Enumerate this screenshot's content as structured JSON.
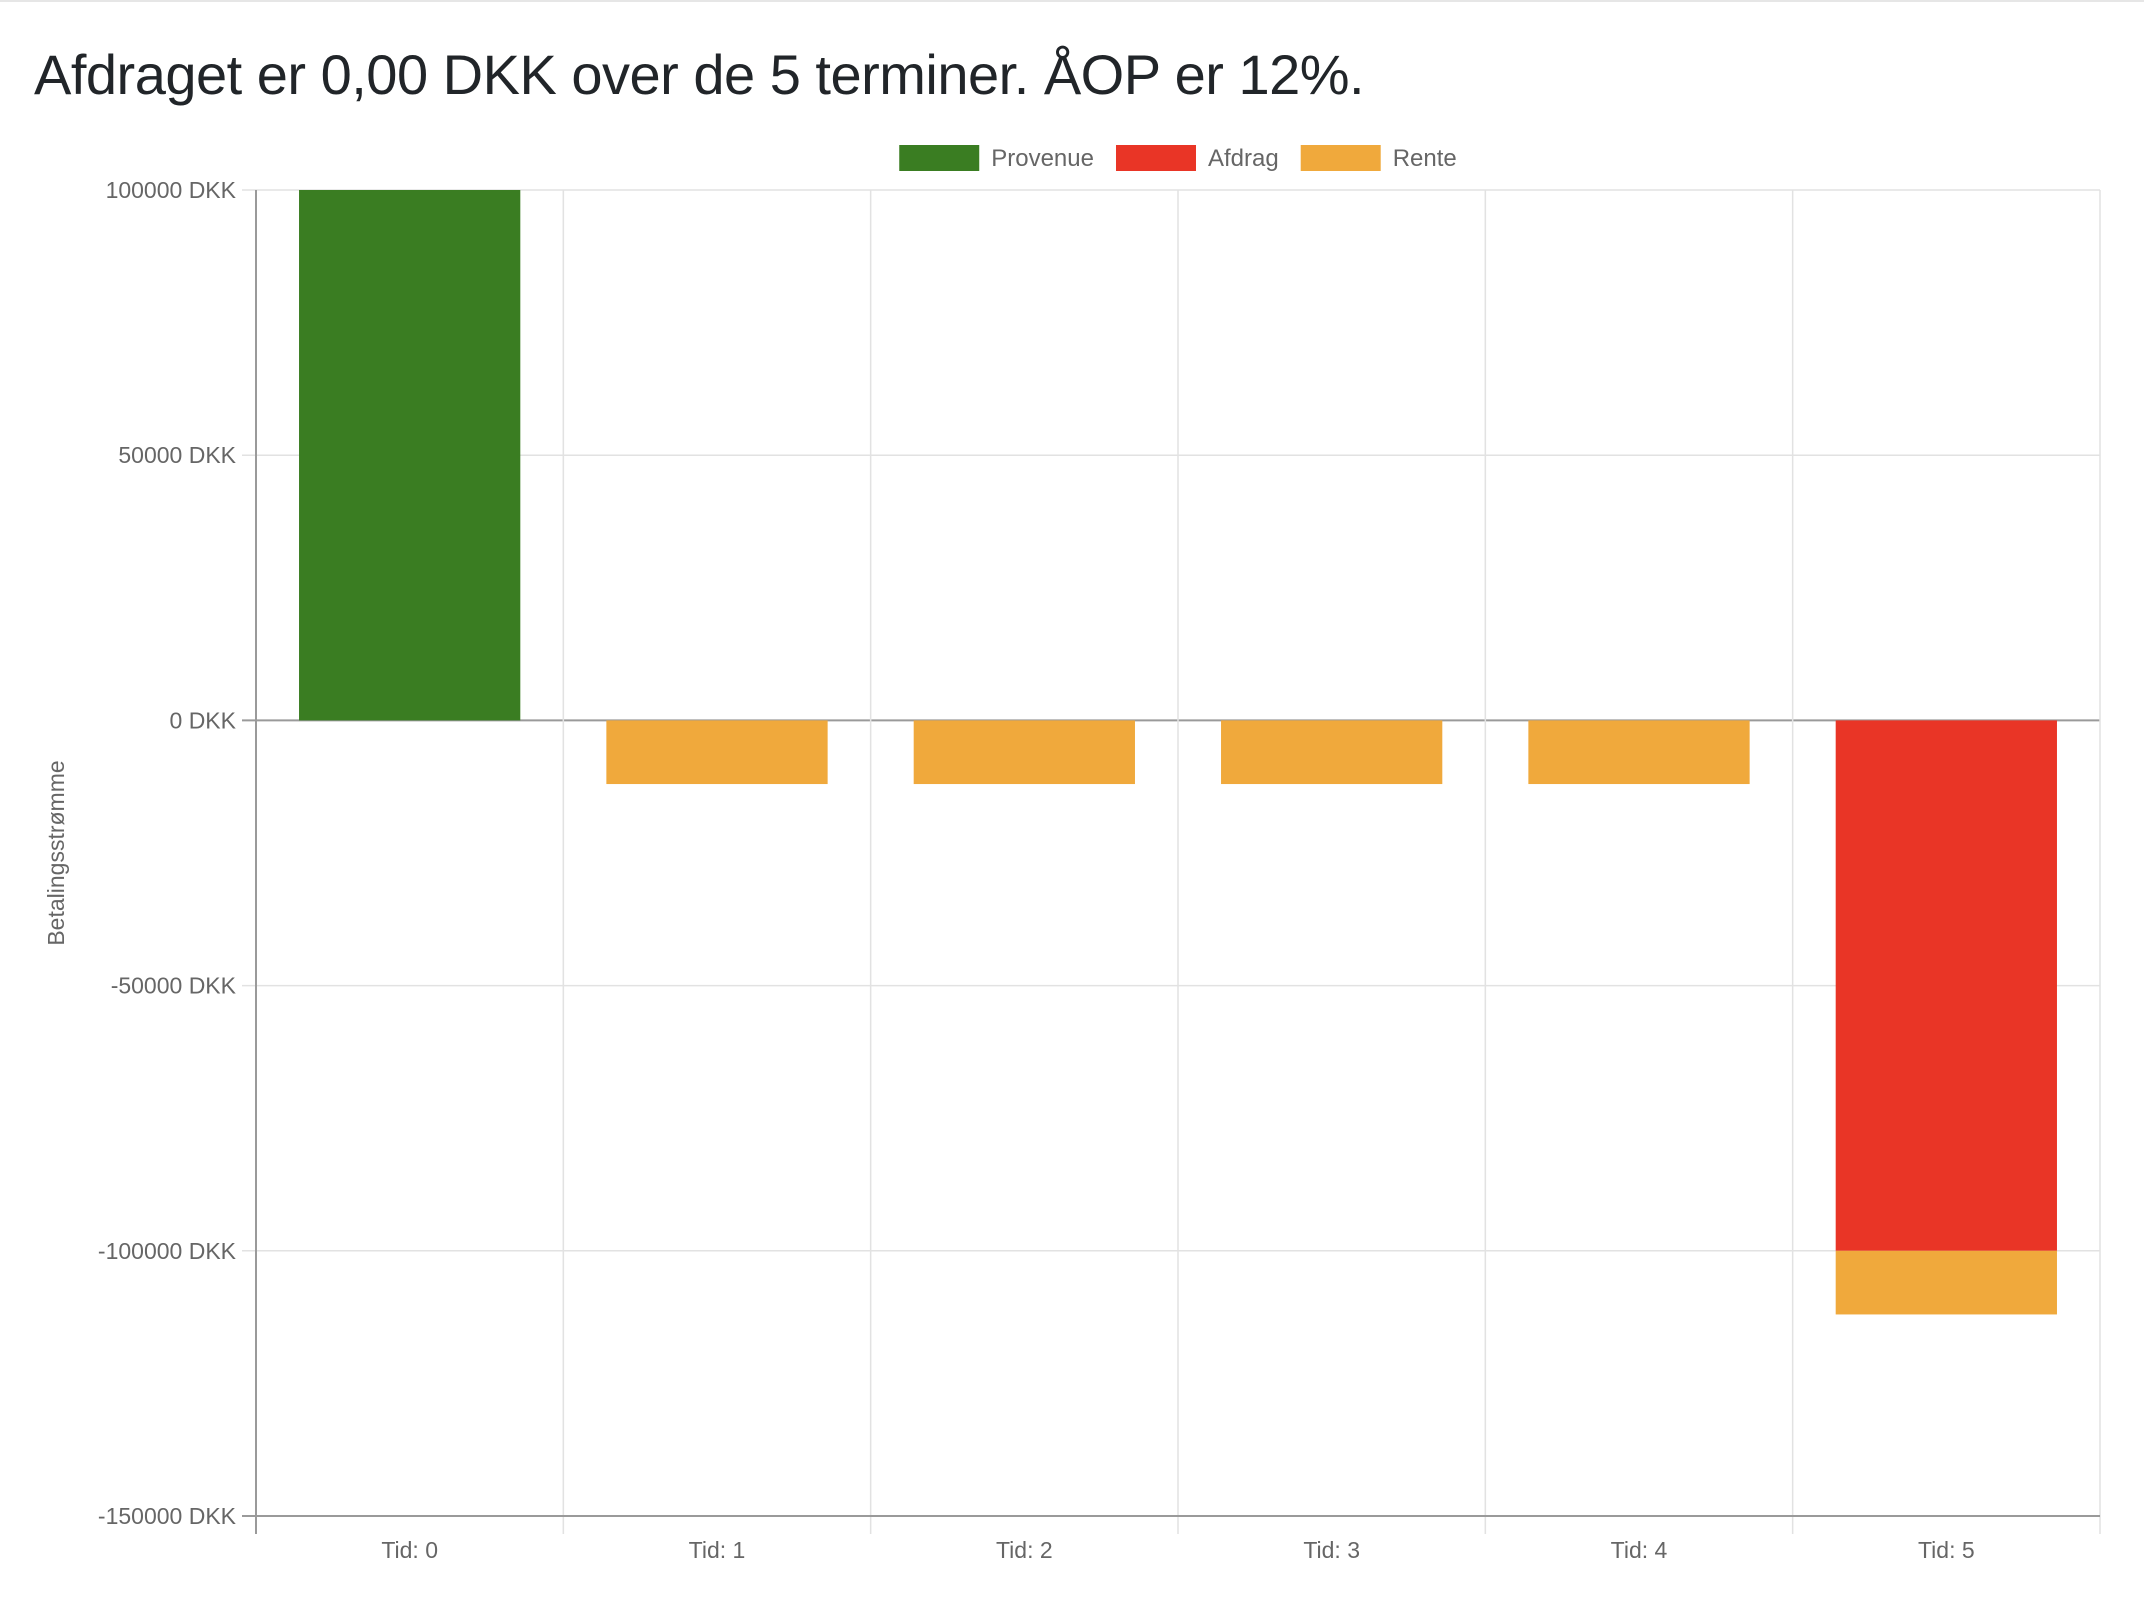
{
  "page": {
    "title": "Afdraget er 0,00 DKK over de 5 terminer. ÅOP er 12%."
  },
  "chart_data": {
    "type": "bar",
    "stacked": true,
    "categories": [
      "Tid: 0",
      "Tid: 1",
      "Tid: 2",
      "Tid: 3",
      "Tid: 4",
      "Tid: 5"
    ],
    "series": [
      {
        "name": "Provenue",
        "color": "#3a7d22",
        "values": [
          100000,
          0,
          0,
          0,
          0,
          0
        ]
      },
      {
        "name": "Afdrag",
        "color": "#e93526",
        "values": [
          0,
          0,
          0,
          0,
          0,
          -100000
        ]
      },
      {
        "name": "Rente",
        "color": "#f0a93c",
        "values": [
          0,
          -12000,
          -12000,
          -12000,
          -12000,
          -12000
        ]
      }
    ],
    "ylabel": "Betalingsstrømme",
    "xlabel": "",
    "ylim": [
      -150000,
      100000
    ],
    "yticks": [
      100000,
      50000,
      0,
      -50000,
      -100000,
      -150000
    ],
    "ytick_labels": [
      "100000 DKK",
      "50000 DKK",
      "0 DKK",
      "-50000 DKK",
      "-100000 DKK",
      "-150000 DKK"
    ],
    "grid": true,
    "legend": "top-center"
  }
}
